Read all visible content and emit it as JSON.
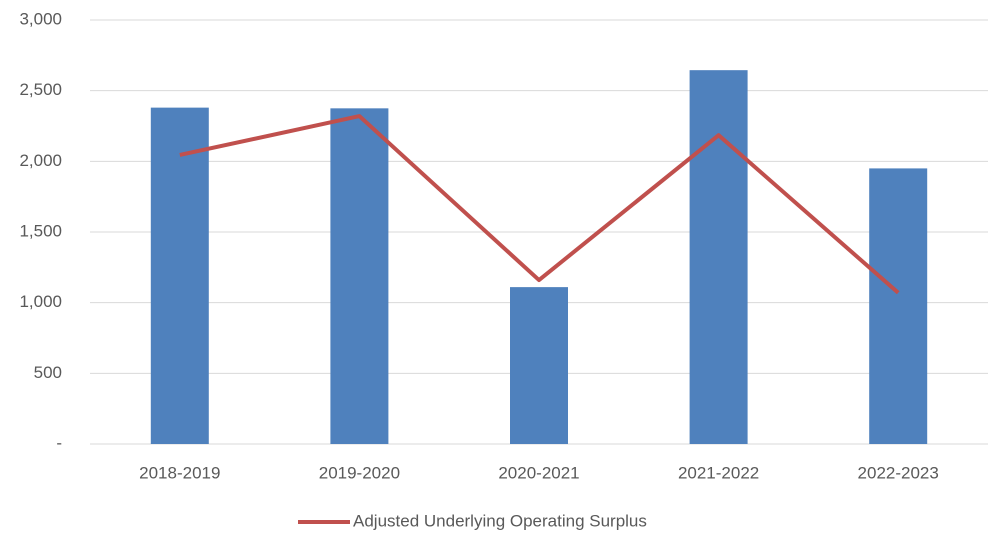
{
  "chart_data": {
    "type": "bar-line",
    "categories": [
      "2018-2019",
      "2019-2020",
      "2020-2021",
      "2021-2022",
      "2022-2023"
    ],
    "series": [
      {
        "type": "bar",
        "color": "#4f81bd",
        "values": [
          2380,
          2375,
          1110,
          2645,
          1950
        ]
      },
      {
        "type": "line",
        "name": "Adjusted Underlying Operating Surplus",
        "color": "#c0504d",
        "values": [
          2045,
          2320,
          1160,
          2185,
          1070
        ]
      }
    ],
    "ylim": [
      0,
      3000
    ],
    "yticks": [
      {
        "value": 0,
        "label": "-"
      },
      500,
      {
        "value": 1000,
        "label": "1,000"
      },
      {
        "value": 1500,
        "label": "1,500"
      },
      {
        "value": 2000,
        "label": "2,000"
      },
      {
        "value": 2500,
        "label": "2,500"
      },
      {
        "value": 3000,
        "label": "3,000"
      }
    ],
    "grid": true,
    "legend": "bottom"
  }
}
